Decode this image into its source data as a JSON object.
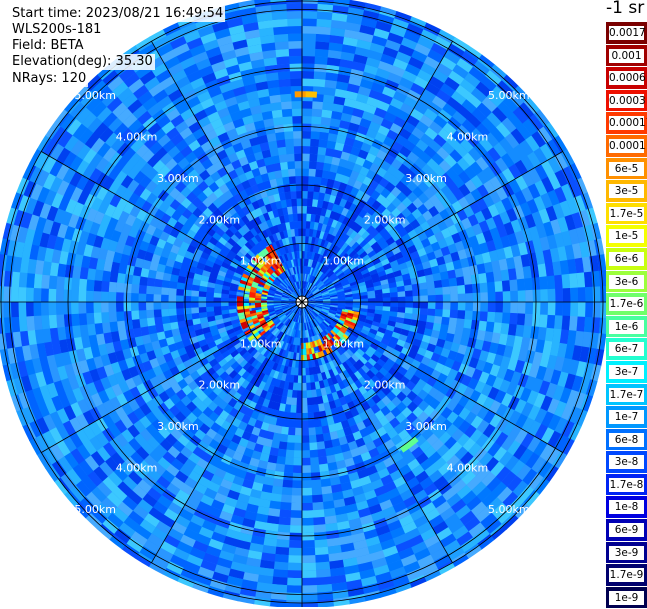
{
  "header": {
    "start_time": "Start time: 2023/08/21 16:49:54",
    "instrument": "WLS200s-181",
    "field": "Field: BETA",
    "elevation": "Elevation(deg): 35.30",
    "nrays": "NRays: 120"
  },
  "colorbar": {
    "unit": "-1 sr",
    "labels": [
      "0.0017",
      "0.001",
      "0.0006",
      "0.0003",
      "0.00017",
      "0.0001",
      "6e-5",
      "3e-5",
      "1.7e-5",
      "1e-5",
      "6e-6",
      "3e-6",
      "1.7e-6",
      "1e-6",
      "6e-7",
      "3e-7",
      "1.7e-7",
      "1e-7",
      "6e-8",
      "3e-8",
      "1.7e-8",
      "1e-8",
      "6e-9",
      "3e-9",
      "1.7e-9",
      "1e-9"
    ],
    "colors": [
      "#7a0000",
      "#a00000",
      "#c80000",
      "#ee1000",
      "#ff3a00",
      "#ff6a00",
      "#ff9000",
      "#ffb800",
      "#ffde00",
      "#f4ff00",
      "#c8ff10",
      "#9cff3c",
      "#70ff6a",
      "#48ffa0",
      "#22ffd0",
      "#00f0ff",
      "#00c4ff",
      "#0098ff",
      "#0070ff",
      "#0048ff",
      "#0024f4",
      "#0000e0",
      "#0000b4",
      "#000090",
      "#00006e",
      "#000050"
    ]
  },
  "chart_data": {
    "type": "heatmap",
    "projection": "polar PPI",
    "field": "BETA",
    "elevation_deg": 35.3,
    "n_rays": 120,
    "range_ring_labels": [
      "1.00km",
      "2.00km",
      "3.00km",
      "4.00km",
      "5.00km"
    ],
    "range_rings_km": [
      1,
      2,
      3,
      4,
      5
    ],
    "max_range_km": 6.9,
    "spoke_interval_deg": 30,
    "background_level": "1e-8 to 1e-7",
    "features": [
      {
        "range_km": [
          0.6,
          1.1
        ],
        "azimuth_deg": [
          230,
          330
        ],
        "level": "1e-5 to 1e-4"
      },
      {
        "range_km": [
          0.7,
          1.0
        ],
        "azimuth_deg": [
          100,
          180
        ],
        "level": "1e-5 to 1e-4"
      },
      {
        "range_km": [
          3.5,
          3.6
        ],
        "azimuth_deg": [
          358,
          2
        ],
        "level": "3e-5"
      },
      {
        "range_km": [
          3.0,
          3.1
        ],
        "azimuth_deg": [
          140,
          144
        ],
        "level": "1e-6"
      }
    ]
  }
}
